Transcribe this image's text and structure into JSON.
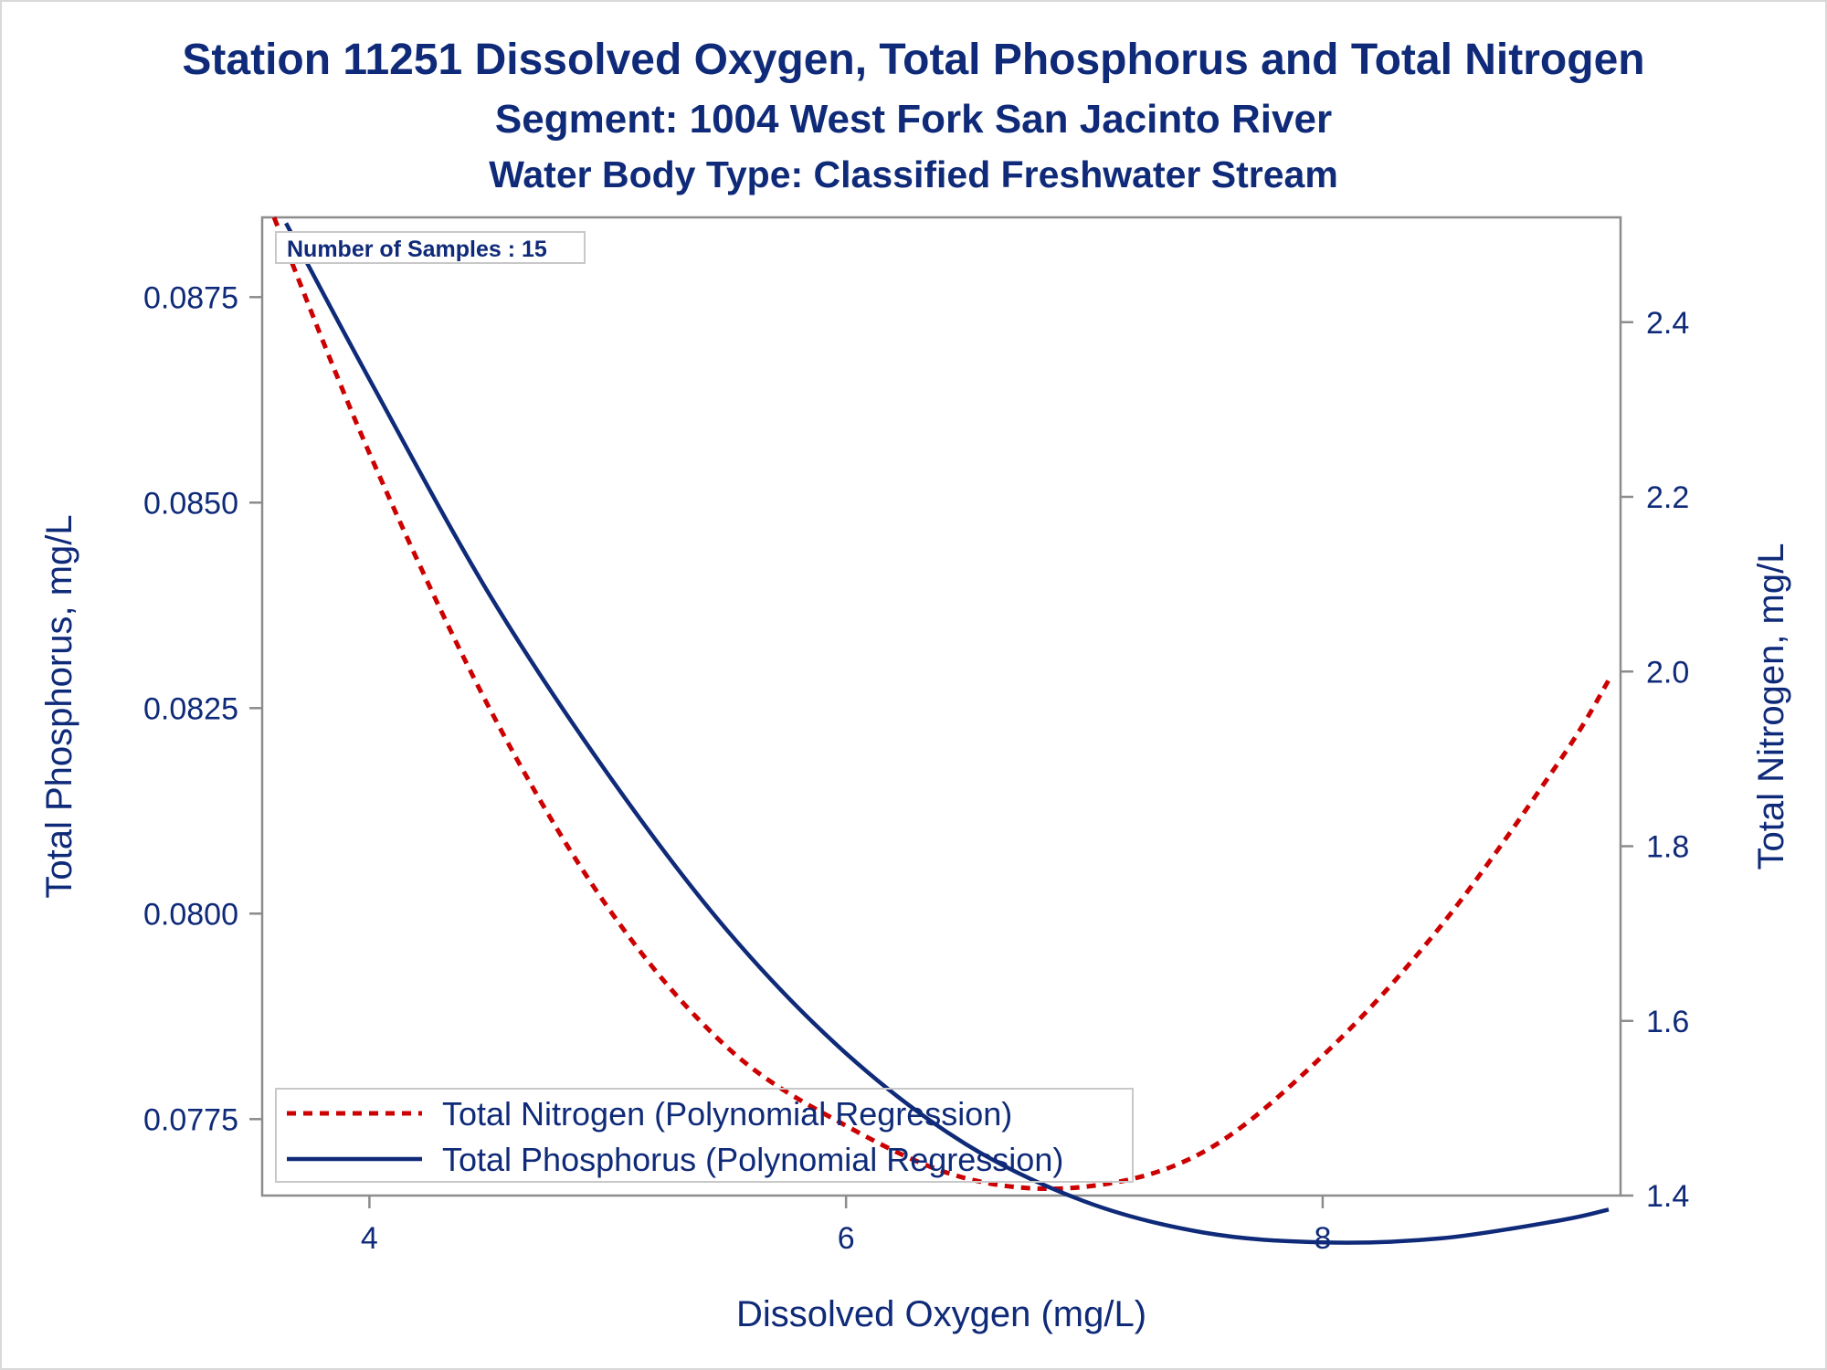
{
  "titles": {
    "line1": "Station 11251  Dissolved Oxygen, Total Phosphorus and Total Nitrogen",
    "line2": "Segment: 1004  West Fork San Jacinto River",
    "line3": "Water Body Type: Classified Freshwater Stream"
  },
  "inset": {
    "text": "Number of Samples : 15"
  },
  "colors": {
    "text": "#0f2a78",
    "nitrogen": "#cc0000",
    "phosphorus": "#0f2a78",
    "axis": "#8c8c8c",
    "frame": "#d9d9d9"
  },
  "chart_data": {
    "type": "line",
    "title": "Station 11251  Dissolved Oxygen, Total Phosphorus and Total Nitrogen",
    "subtitle": [
      "Segment: 1004  West Fork San Jacinto River",
      "Water Body Type: Classified Freshwater Stream"
    ],
    "xlabel": "Dissolved Oxygen (mg/L)",
    "ylabel": "Total Phosphorus, mg/L",
    "y2label": "Total Nitrogen, mg/L",
    "xlim": [
      3.55,
      9.25
    ],
    "ylim": [
      0.07657,
      0.08847
    ],
    "y2lim": [
      1.4,
      2.52
    ],
    "xticks": [
      4,
      6,
      8
    ],
    "xtick_labels": [
      "4",
      "6",
      "8"
    ],
    "yticks": [
      0.0775,
      0.08,
      0.0825,
      0.085,
      0.0875
    ],
    "ytick_labels": [
      "0.0775",
      "0.0800",
      "0.0825",
      "0.0850",
      "0.0875"
    ],
    "y2ticks": [
      1.4,
      1.6,
      1.8,
      2.0,
      2.2,
      2.4
    ],
    "y2tick_labels": [
      "1.4",
      "1.6",
      "1.8",
      "2.0",
      "2.2",
      "2.4"
    ],
    "grid": false,
    "legend_position": "bottom-left inside",
    "series": [
      {
        "name": "Total Nitrogen (Polynomial Regression)",
        "axis": "right",
        "style": "dashed",
        "x": [
          3.6,
          4.0,
          4.5,
          5.0,
          5.5,
          6.0,
          6.5,
          7.0,
          7.5,
          8.0,
          8.5,
          9.0,
          9.2
        ],
        "y": [
          2.52,
          2.25,
          1.96,
          1.73,
          1.57,
          1.48,
          1.42,
          1.41,
          1.45,
          1.56,
          1.71,
          1.9,
          1.99
        ]
      },
      {
        "name": "Total Phosphorus (Polynomial Regression)",
        "axis": "left",
        "style": "solid",
        "x": [
          3.65,
          4.0,
          4.5,
          5.0,
          5.5,
          6.0,
          6.5,
          7.0,
          7.5,
          8.0,
          8.5,
          9.0,
          9.2
        ],
        "y": [
          0.0884,
          0.0865,
          0.0839,
          0.0817,
          0.0798,
          0.0783,
          0.0772,
          0.0765,
          0.07612,
          0.076,
          0.07605,
          0.07627,
          0.0764
        ]
      }
    ]
  }
}
